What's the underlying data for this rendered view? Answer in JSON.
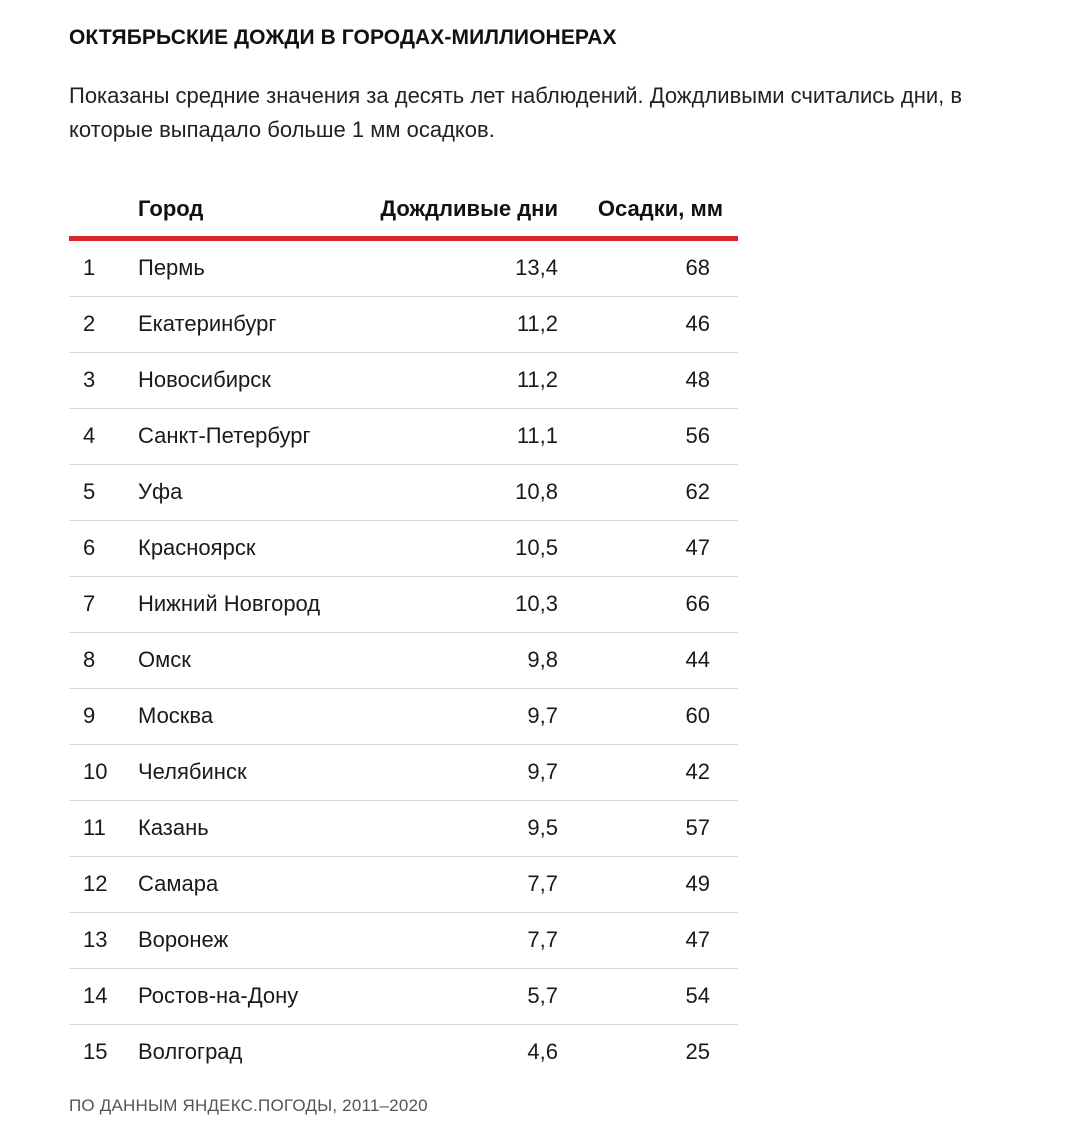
{
  "title": "ОКТЯБРЬСКИЕ ДОЖДИ В ГОРОДАХ-МИЛЛИОНЕРАХ",
  "subtitle": "Показаны средние значения за десять лет наблюдений. Дождливыми считались дни, в которые выпадало больше 1 мм осадков.",
  "table": {
    "headers": {
      "rank": "",
      "city": "Город",
      "rainy_days": "Дождливые дни",
      "precipitation": "Осадки, мм"
    },
    "rows": [
      {
        "rank": "1",
        "city": "Пермь",
        "rainy_days": "13,4",
        "precipitation": "68"
      },
      {
        "rank": "2",
        "city": "Екатеринбург",
        "rainy_days": "11,2",
        "precipitation": "46"
      },
      {
        "rank": "3",
        "city": "Новосибирск",
        "rainy_days": "11,2",
        "precipitation": "48"
      },
      {
        "rank": "4",
        "city": "Санкт-Петербург",
        "rainy_days": "11,1",
        "precipitation": "56"
      },
      {
        "rank": "5",
        "city": "Уфа",
        "rainy_days": "10,8",
        "precipitation": "62"
      },
      {
        "rank": "6",
        "city": "Красноярск",
        "rainy_days": "10,5",
        "precipitation": "47"
      },
      {
        "rank": "7",
        "city": "Нижний Новгород",
        "rainy_days": "10,3",
        "precipitation": "66"
      },
      {
        "rank": "8",
        "city": "Омск",
        "rainy_days": "9,8",
        "precipitation": "44"
      },
      {
        "rank": "9",
        "city": "Москва",
        "rainy_days": "9,7",
        "precipitation": "60"
      },
      {
        "rank": "10",
        "city": "Челябинск",
        "rainy_days": "9,7",
        "precipitation": "42"
      },
      {
        "rank": "11",
        "city": "Казань",
        "rainy_days": "9,5",
        "precipitation": "57"
      },
      {
        "rank": "12",
        "city": "Самара",
        "rainy_days": "7,7",
        "precipitation": "49"
      },
      {
        "rank": "13",
        "city": "Воронеж",
        "rainy_days": "7,7",
        "precipitation": "47"
      },
      {
        "rank": "14",
        "city": "Ростов-на-Дону",
        "rainy_days": "5,7",
        "precipitation": "54"
      },
      {
        "rank": "15",
        "city": "Волгоград",
        "rainy_days": "4,6",
        "precipitation": "25"
      }
    ]
  },
  "source": "ПО ДАННЫМ ЯНДЕКС.ПОГОДЫ, 2011–2020",
  "colors": {
    "accent": "#d8262c",
    "row_divider": "#d9d9d9"
  }
}
